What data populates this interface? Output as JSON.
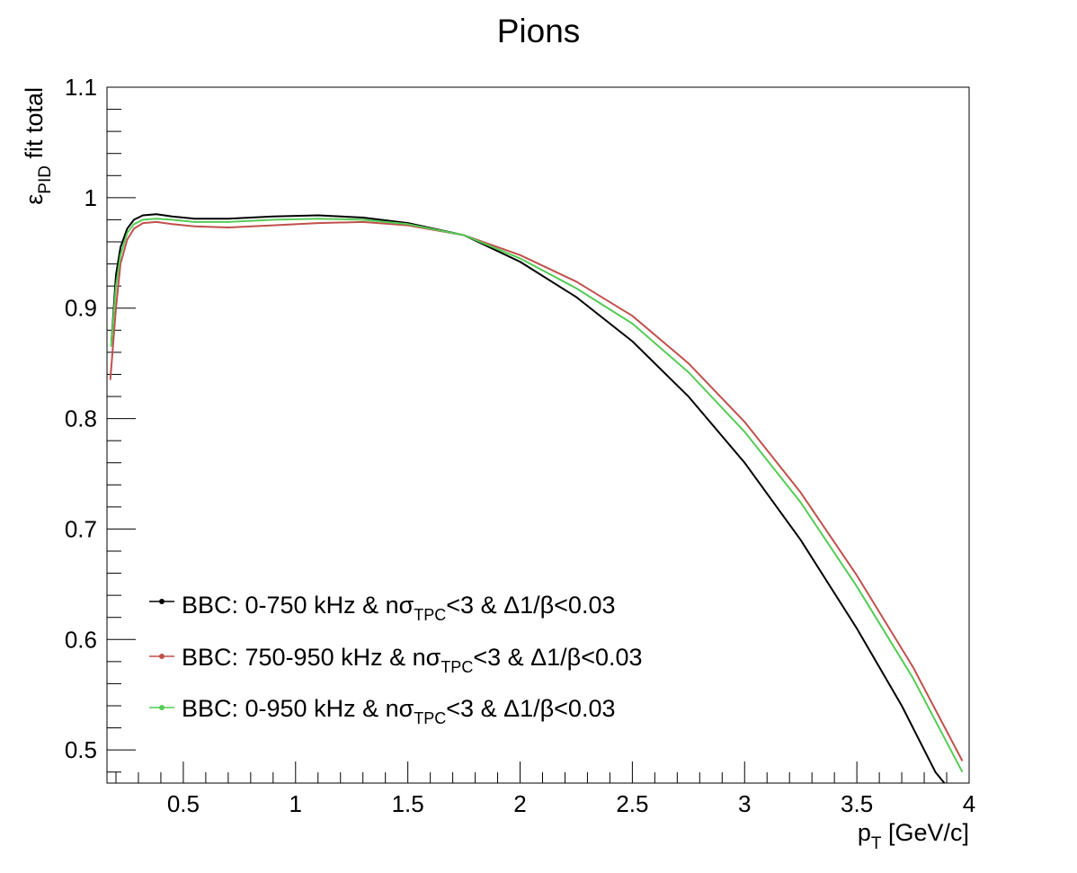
{
  "chart_data": {
    "type": "line",
    "title": "Pions",
    "xlabel": {
      "main": "p",
      "sub": "T",
      "rest": " [GeV/c]"
    },
    "ylabel": {
      "main": "ε",
      "sub": "PID",
      "rest": " fit total"
    },
    "xlim": [
      0.16,
      4.0
    ],
    "ylim": [
      0.47,
      1.1
    ],
    "xticks": [
      {
        "v": 0.5,
        "label": "0.5"
      },
      {
        "v": 1.0,
        "label": "1"
      },
      {
        "v": 1.5,
        "label": "1.5"
      },
      {
        "v": 2.0,
        "label": "2"
      },
      {
        "v": 2.5,
        "label": "2.5"
      },
      {
        "v": 3.0,
        "label": "3"
      },
      {
        "v": 3.5,
        "label": "3.5"
      },
      {
        "v": 4.0,
        "label": "4"
      }
    ],
    "yticks": [
      {
        "v": 0.5,
        "label": "0.5"
      },
      {
        "v": 0.6,
        "label": "0.6"
      },
      {
        "v": 0.7,
        "label": "0.7"
      },
      {
        "v": 0.8,
        "label": "0.8"
      },
      {
        "v": 0.9,
        "label": "0.9"
      },
      {
        "v": 1.0,
        "label": "1"
      },
      {
        "v": 1.1,
        "label": "1.1"
      }
    ],
    "grid": false,
    "legend_position": "bottom-left",
    "series": [
      {
        "name": {
          "a": "BBC: 0-750 kHz & nσ",
          "sub": "TPC",
          "b": "<3 & Δ1/β<0.03"
        },
        "color": "#000000",
        "x": [
          0.18,
          0.2,
          0.22,
          0.25,
          0.28,
          0.32,
          0.38,
          0.45,
          0.55,
          0.7,
          0.9,
          1.1,
          1.3,
          1.5,
          1.75,
          2.0,
          2.25,
          2.5,
          2.75,
          3.0,
          3.25,
          3.5,
          3.7,
          3.85,
          3.89
        ],
        "y": [
          0.87,
          0.93,
          0.955,
          0.972,
          0.98,
          0.984,
          0.985,
          0.983,
          0.981,
          0.981,
          0.983,
          0.984,
          0.982,
          0.977,
          0.966,
          0.942,
          0.91,
          0.87,
          0.82,
          0.76,
          0.69,
          0.61,
          0.54,
          0.48,
          0.47
        ]
      },
      {
        "name": {
          "a": "BBC: 750-950 kHz & nσ",
          "sub": "TPC",
          "b": "<3 & Δ1/β<0.03"
        },
        "color": "#c0504d",
        "x": [
          0.175,
          0.2,
          0.22,
          0.25,
          0.28,
          0.32,
          0.38,
          0.45,
          0.55,
          0.7,
          0.9,
          1.1,
          1.3,
          1.5,
          1.75,
          2.0,
          2.25,
          2.5,
          2.75,
          3.0,
          3.25,
          3.5,
          3.75,
          3.97
        ],
        "y": [
          0.835,
          0.9,
          0.94,
          0.962,
          0.972,
          0.977,
          0.978,
          0.976,
          0.974,
          0.973,
          0.975,
          0.977,
          0.978,
          0.975,
          0.966,
          0.948,
          0.924,
          0.893,
          0.85,
          0.797,
          0.733,
          0.658,
          0.575,
          0.49
        ]
      },
      {
        "name": {
          "a": "BBC: 0-950 kHz & nσ",
          "sub": "TPC",
          "b": "<3 & Δ1/β<0.03"
        },
        "color": "#55cc55",
        "x": [
          0.178,
          0.2,
          0.22,
          0.25,
          0.28,
          0.32,
          0.38,
          0.45,
          0.55,
          0.7,
          0.9,
          1.1,
          1.3,
          1.5,
          1.75,
          2.0,
          2.25,
          2.5,
          2.75,
          3.0,
          3.25,
          3.5,
          3.75,
          3.97
        ],
        "y": [
          0.865,
          0.92,
          0.948,
          0.968,
          0.976,
          0.98,
          0.981,
          0.98,
          0.978,
          0.978,
          0.98,
          0.981,
          0.98,
          0.976,
          0.966,
          0.945,
          0.918,
          0.886,
          0.842,
          0.788,
          0.724,
          0.648,
          0.565,
          0.48
        ]
      }
    ]
  }
}
